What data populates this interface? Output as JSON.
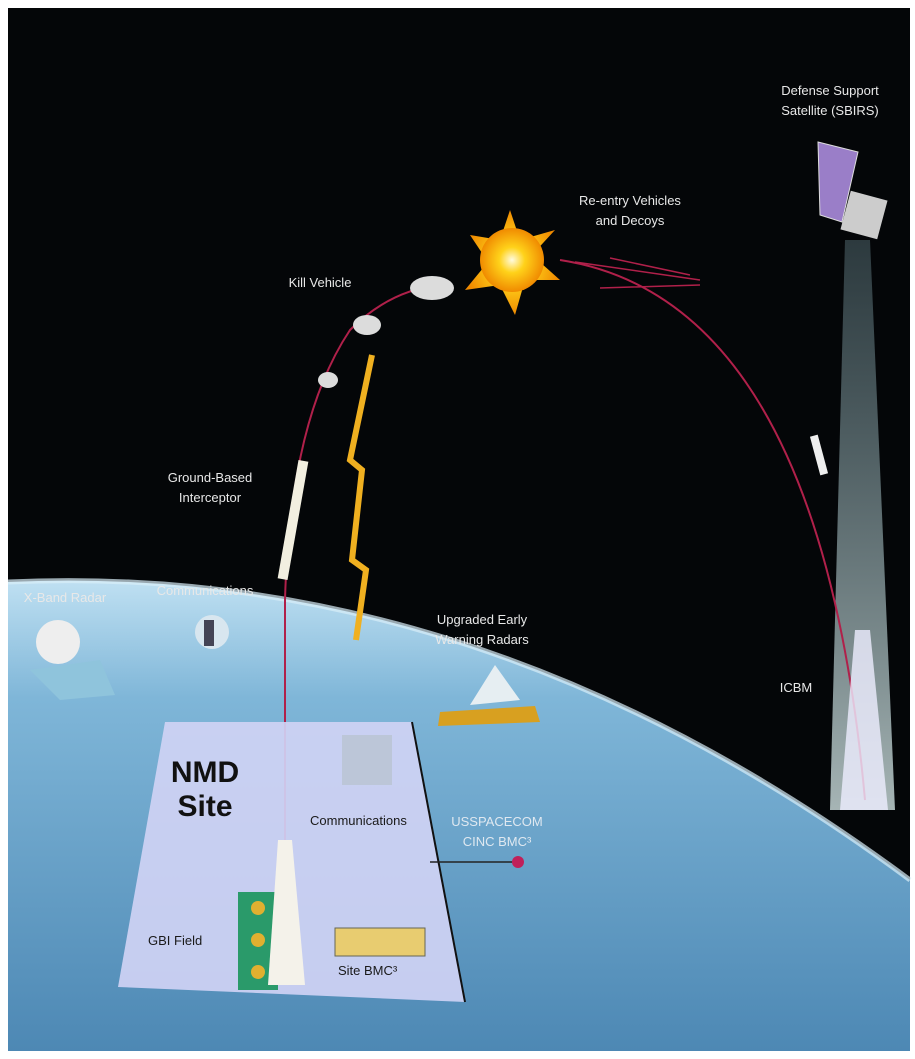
{
  "labels": {
    "satellite": [
      "Defense Support",
      "Satellite (SBIRS)"
    ],
    "reentry": [
      "Re-entry Vehicles",
      "and Decoys"
    ],
    "kill_vehicle": "Kill Vehicle",
    "interceptor": [
      "Ground-Based",
      "Interceptor"
    ],
    "communications": "Communications",
    "xband": "X-Band Radar",
    "early_warning": [
      "Upgraded Early",
      "Warning Radars"
    ],
    "icbm": "ICBM",
    "nmd_site": [
      "NMD",
      "Site"
    ],
    "site_communications": "Communications",
    "usspacecom": [
      "USSPACECOM",
      "CINC BMC³"
    ],
    "gbi_field": "GBI Field",
    "site_bmc": "Site BMC³"
  }
}
